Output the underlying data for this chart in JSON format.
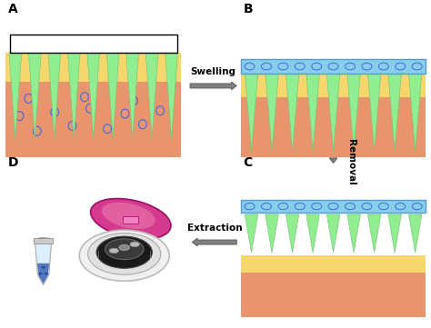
{
  "figure_bg": "#ffffff",
  "colors": {
    "figure_bg": "#ffffff",
    "skin_top": "#F4A460",
    "skin_deep": "#E8956D",
    "yellow_layer": "#F5D76E",
    "needle_green": "#90EE90",
    "needle_green_dark": "#7BC67B",
    "patch_blue": "#87CEEB",
    "patch_border": "#5B9BD5",
    "dot_blue": "#4169E1",
    "arrow_gray": "#808080",
    "arrow_border": "#606060",
    "centrifuge_body": "#E8E8E8",
    "centrifuge_lid": "#D63A8E",
    "centrifuge_dark": "#333333",
    "tube_body": "#D0D0D0",
    "tube_liquid": "#4169E1",
    "bracket_color": "#000000",
    "text_color": "#000000"
  },
  "needle_count": 9,
  "swelling_text": "Swelling",
  "removal_text": "Removal",
  "extraction_text": "Extraction"
}
